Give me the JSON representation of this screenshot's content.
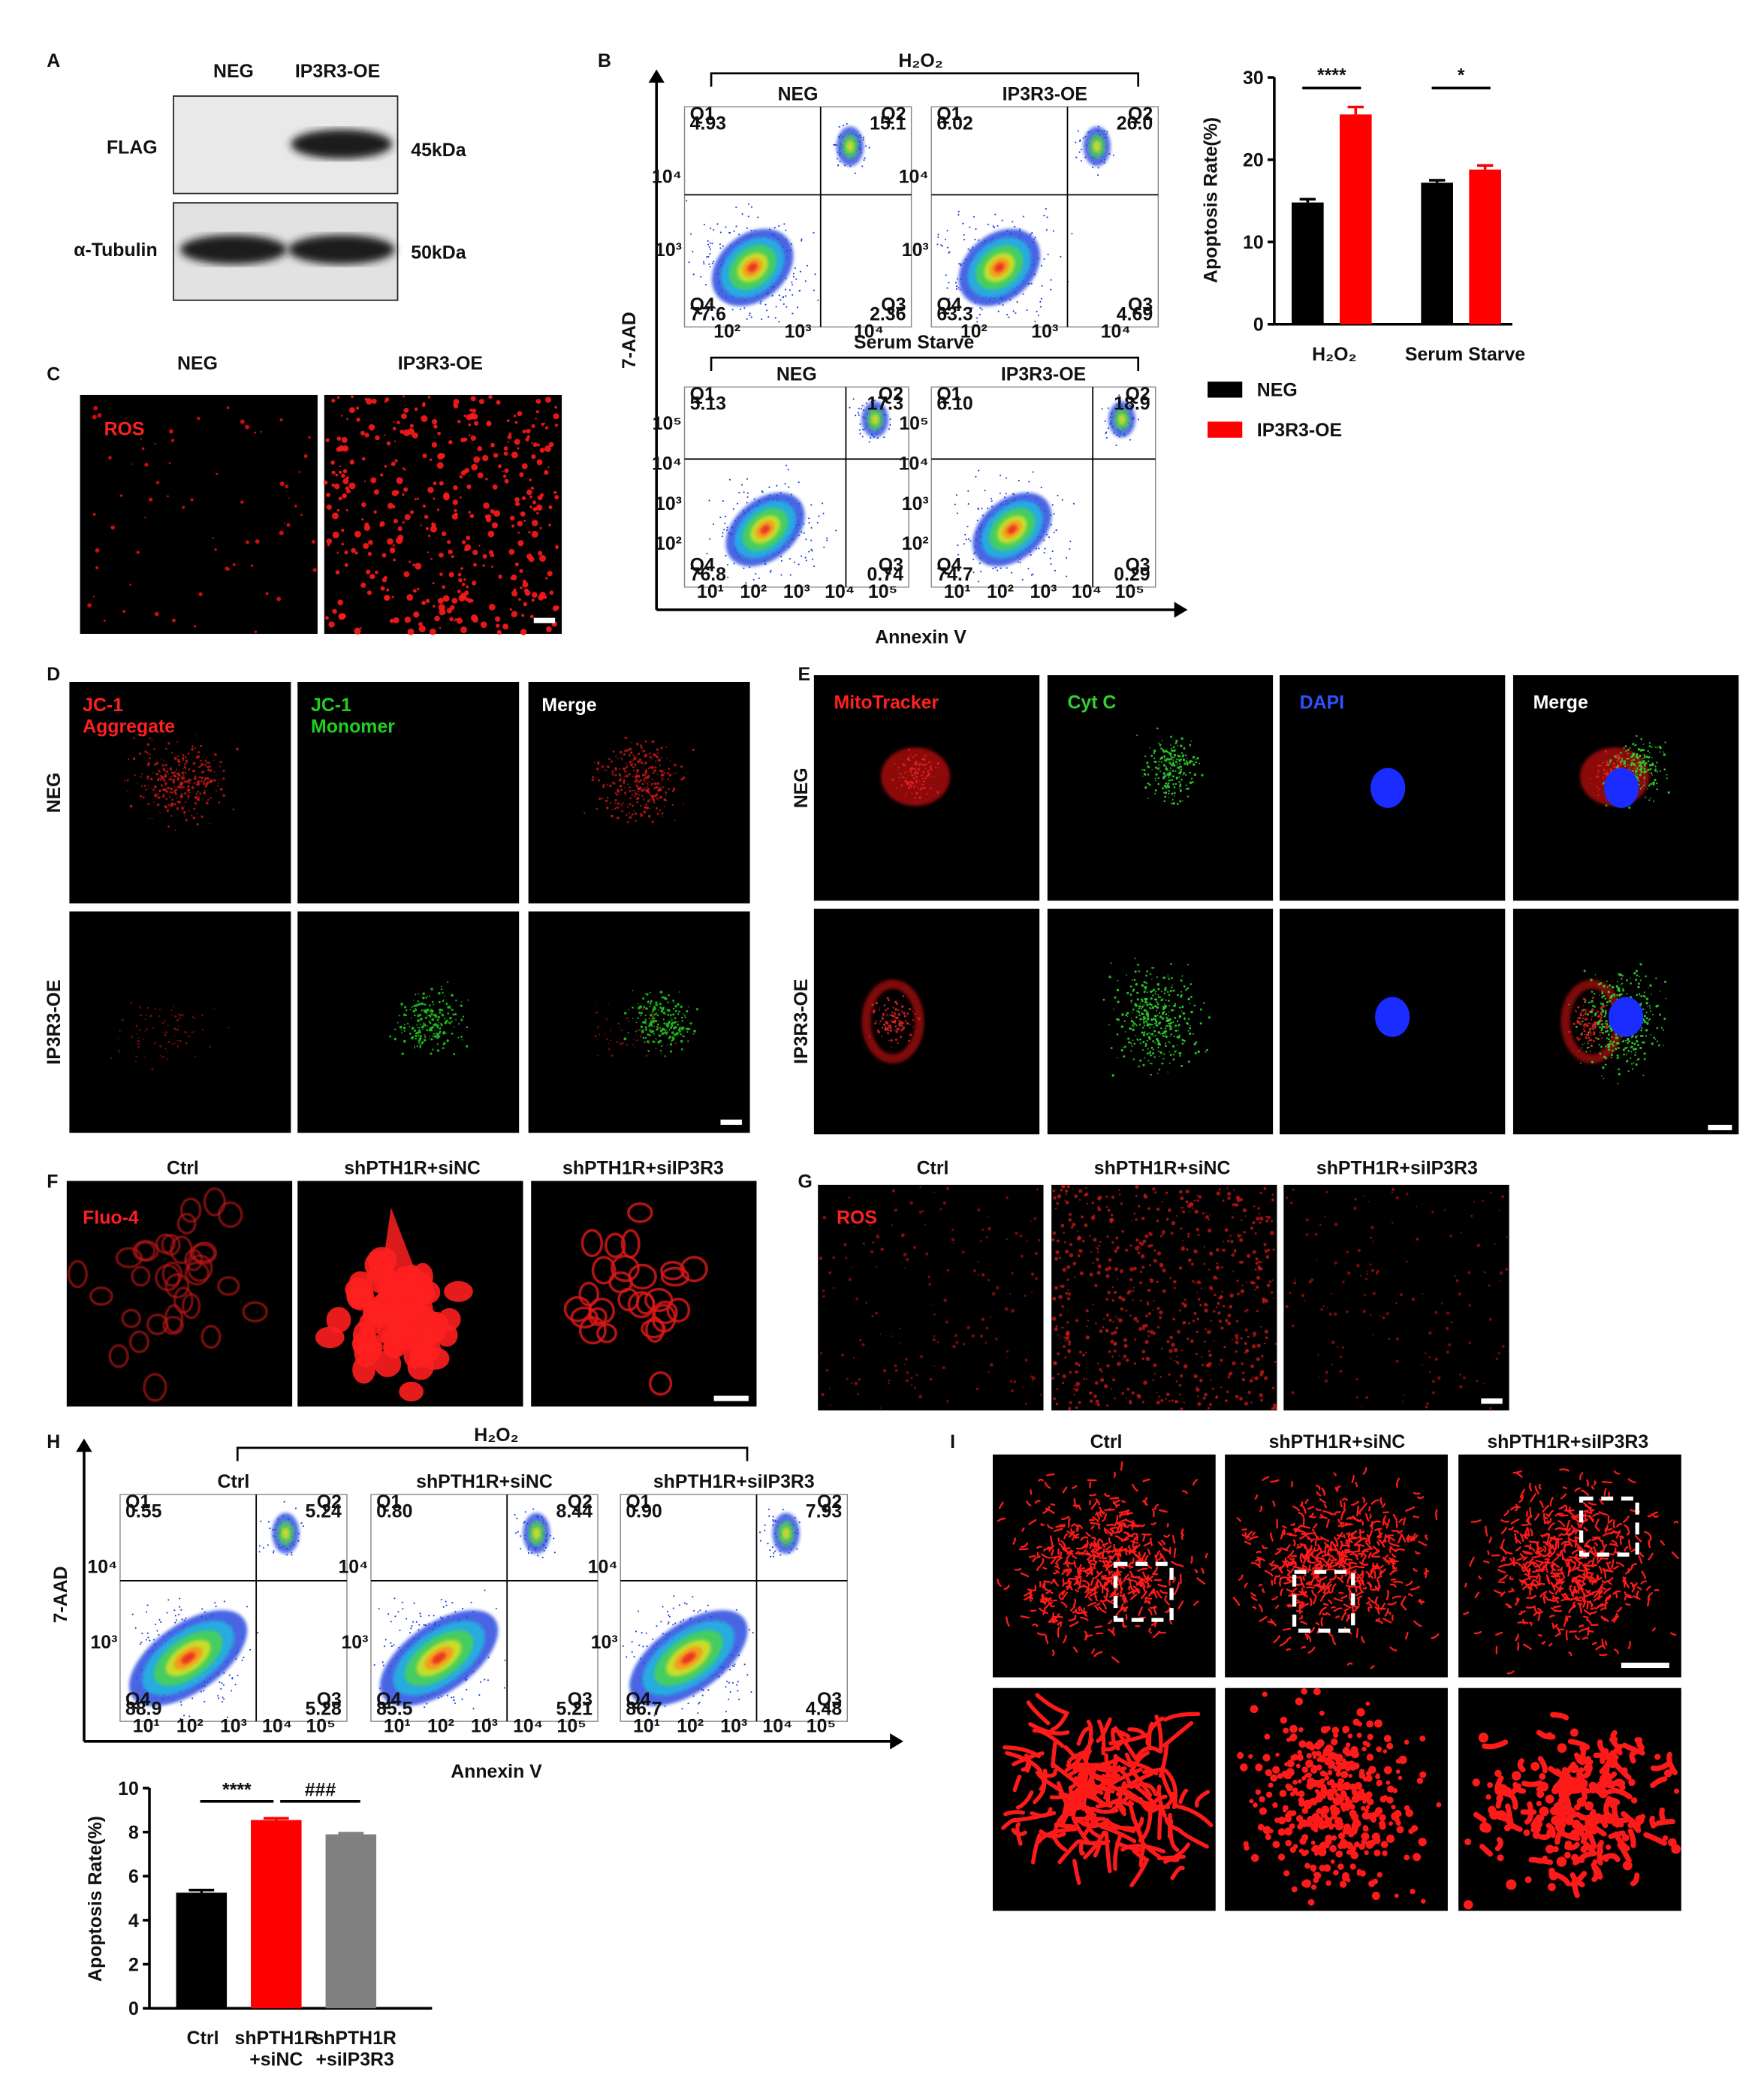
{
  "panels": {
    "A": {
      "label": "A",
      "lanes": [
        "NEG",
        "IP3R3-OE"
      ],
      "rows": [
        {
          "name": "FLAG",
          "size": "45kDa"
        },
        {
          "name": "α-Tubulin",
          "size": "50kDa"
        }
      ]
    },
    "B": {
      "label": "B",
      "y_axis": "7-AAD",
      "x_axis": "Annexin V",
      "groups": [
        {
          "title": "H₂O₂",
          "yticks": [
            "10⁴",
            "10³"
          ],
          "xticks": [
            "10²",
            "10³",
            "10⁴"
          ],
          "plots": [
            {
              "title": "NEG",
              "quadrants": [
                {
                  "name": "Q1",
                  "value": "4.93"
                },
                {
                  "name": "Q2",
                  "value": "15.1"
                },
                {
                  "name": "Q3",
                  "value": "2.36"
                },
                {
                  "name": "Q4",
                  "value": "77.6"
                }
              ]
            },
            {
              "title": "IP3R3-OE",
              "quadrants": [
                {
                  "name": "Q1",
                  "value": "6.02"
                },
                {
                  "name": "Q2",
                  "value": "26.0"
                },
                {
                  "name": "Q3",
                  "value": "4.69"
                },
                {
                  "name": "Q4",
                  "value": "63.3"
                }
              ]
            }
          ]
        },
        {
          "title": "Serum Starve",
          "yticks": [
            "10⁵",
            "10⁴",
            "10³",
            "10²"
          ],
          "xticks": [
            "10¹",
            "10²",
            "10³",
            "10⁴",
            "10⁵"
          ],
          "plots": [
            {
              "title": "NEG",
              "quadrants": [
                {
                  "name": "Q1",
                  "value": "5.13"
                },
                {
                  "name": "Q2",
                  "value": "17.3"
                },
                {
                  "name": "Q3",
                  "value": "0.74"
                },
                {
                  "name": "Q4",
                  "value": "76.8"
                }
              ]
            },
            {
              "title": "IP3R3-OE",
              "quadrants": [
                {
                  "name": "Q1",
                  "value": "6.10"
                },
                {
                  "name": "Q2",
                  "value": "18.9"
                },
                {
                  "name": "Q3",
                  "value": "0.29"
                },
                {
                  "name": "Q4",
                  "value": "74.7"
                }
              ]
            }
          ]
        }
      ]
    },
    "C": {
      "label": "C",
      "columns": [
        "NEG",
        "IP3R3-OE"
      ],
      "stain": "ROS"
    },
    "D": {
      "label": "D",
      "columns": [
        "JC-1\nAggregate",
        "JC-1\nMonomer",
        "Merge"
      ],
      "rows": [
        "NEG",
        "IP3R3-OE"
      ]
    },
    "E": {
      "label": "E",
      "columns": [
        "MitoTracker",
        "Cyt C",
        "DAPI",
        "Merge"
      ],
      "rows": [
        "NEG",
        "IP3R3-OE"
      ]
    },
    "F": {
      "label": "F",
      "columns": [
        "Ctrl",
        "shPTH1R+siNC",
        "shPTH1R+siIP3R3"
      ],
      "stain": "Fluo-4"
    },
    "G": {
      "label": "G",
      "columns": [
        "Ctrl",
        "shPTH1R+siNC",
        "shPTH1R+siIP3R3"
      ],
      "stain": "ROS"
    },
    "H": {
      "label": "H",
      "y_axis": "7-AAD",
      "x_axis": "Annexin V",
      "groups": [
        {
          "title": "H₂O₂",
          "yticks": [
            "10⁴",
            "10³"
          ],
          "xticks": [
            "10¹",
            "10²",
            "10³",
            "10⁴",
            "10⁵"
          ],
          "plots": [
            {
              "title": "Ctrl",
              "quadrants": [
                {
                  "name": "Q1",
                  "value": "0.55"
                },
                {
                  "name": "Q2",
                  "value": "5.24"
                },
                {
                  "name": "Q3",
                  "value": "5.28"
                },
                {
                  "name": "Q4",
                  "value": "88.9"
                }
              ]
            },
            {
              "title": "shPTH1R+siNC",
              "quadrants": [
                {
                  "name": "Q1",
                  "value": "0.80"
                },
                {
                  "name": "Q2",
                  "value": "8.44"
                },
                {
                  "name": "Q3",
                  "value": "5.21"
                },
                {
                  "name": "Q4",
                  "value": "85.5"
                }
              ]
            },
            {
              "title": "shPTH1R+siIP3R3",
              "quadrants": [
                {
                  "name": "Q1",
                  "value": "0.90"
                },
                {
                  "name": "Q2",
                  "value": "7.93"
                },
                {
                  "name": "Q3",
                  "value": "4.48"
                },
                {
                  "name": "Q4",
                  "value": "86.7"
                }
              ]
            }
          ]
        }
      ]
    },
    "I": {
      "label": "I",
      "columns": [
        "Ctrl",
        "shPTH1R+siNC",
        "shPTH1R+siIP3R3"
      ]
    }
  },
  "chart_data": [
    {
      "type": "bar",
      "ylabel": "Apoptosis Rate(%)",
      "categories": [
        "H₂O₂",
        "Serum Starve"
      ],
      "series": [
        {
          "name": "NEG",
          "color": "#000000",
          "values": [
            14.8,
            17.2
          ],
          "errors": [
            0.4,
            0.3
          ]
        },
        {
          "name": "IP3R3-OE",
          "color": "#ff0000",
          "values": [
            25.5,
            18.8
          ],
          "errors": [
            0.9,
            0.5
          ]
        }
      ],
      "ylim": [
        0,
        30
      ],
      "yticks": [
        0,
        10,
        20,
        30
      ],
      "annotations": [
        "****",
        "*"
      ],
      "legend": "below"
    },
    {
      "type": "bar",
      "ylabel": "Apoptosis Rate(%)",
      "categories": [
        "Ctrl",
        "shPTH1R\n+siNC",
        "shPTH1R\n+siIP3R3"
      ],
      "values": [
        5.25,
        8.55,
        7.9
      ],
      "errors": [
        0.12,
        0.08,
        0.05
      ],
      "colors": [
        "#000000",
        "#ff0000",
        "#808080"
      ],
      "ylim": [
        0,
        10
      ],
      "yticks": [
        0,
        2,
        4,
        6,
        8,
        10
      ],
      "annotations": [
        "****",
        "###"
      ]
    }
  ]
}
